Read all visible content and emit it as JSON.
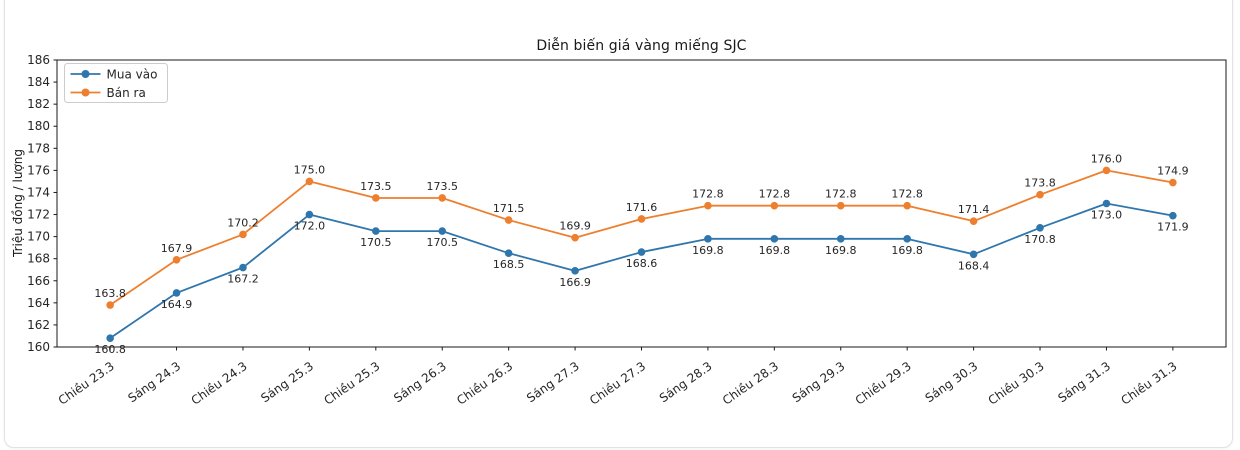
{
  "chart_data": {
    "type": "line",
    "title": "Diễn biến giá vàng miếng SJC",
    "xlabel": "",
    "ylabel": "Triệu đồng / lượng",
    "ylim": [
      160,
      186
    ],
    "ytick_step": 2,
    "grid": false,
    "legend_position": "upper-left",
    "categories": [
      "Chiều 23.3",
      "Sáng 24.3",
      "Chiều 24.3",
      "Sáng 25.3",
      "Chiều 25.3",
      "Sáng 26.3",
      "Chiều 26.3",
      "Sáng 27.3",
      "Chiều 27.3",
      "Sáng 28.3",
      "Chiều 28.3",
      "Sáng 29.3",
      "Chiều 29.3",
      "Sáng 30.3",
      "Chiều 30.3",
      "Sáng 31.3",
      "Chiều 31.3"
    ],
    "series": [
      {
        "name": "Mua vào",
        "color": "#2f76ad",
        "label_position": "below",
        "values": [
          160.8,
          164.9,
          167.2,
          172.0,
          170.5,
          170.5,
          168.5,
          166.9,
          168.6,
          169.8,
          169.8,
          169.8,
          169.8,
          168.4,
          170.8,
          173.0,
          171.9
        ]
      },
      {
        "name": "Bán ra",
        "color": "#ee7f2e",
        "label_position": "above",
        "values": [
          163.8,
          167.9,
          170.2,
          175.0,
          173.5,
          173.5,
          171.5,
          169.9,
          171.6,
          172.8,
          172.8,
          172.8,
          172.8,
          171.4,
          173.8,
          176.0,
          174.9
        ]
      }
    ],
    "colors": {
      "axis": "#1a1a1a",
      "tick_text": "#262626",
      "data_label": "#262626",
      "legend_border": "#cccccc",
      "plot_background": "#ffffff"
    }
  }
}
